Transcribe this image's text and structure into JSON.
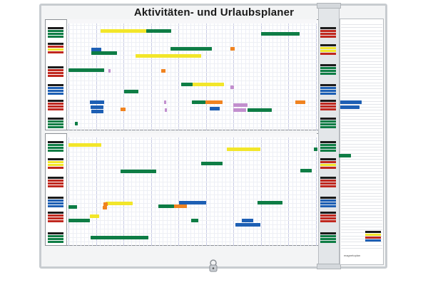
{
  "title": "Aktivitäten- und Urlaubsplaner",
  "brand_text": "magnetoplan",
  "colors": {
    "yellow": "#f2e62a",
    "green": "#0e7d45",
    "blue": "#1d5fb4",
    "orange": "#f08320",
    "purple": "#c28fce",
    "red": "#c0281f",
    "frame": "#c8ccd0",
    "grid": "#e6e8f4"
  },
  "icons": [
    "lock-icon"
  ]
}
